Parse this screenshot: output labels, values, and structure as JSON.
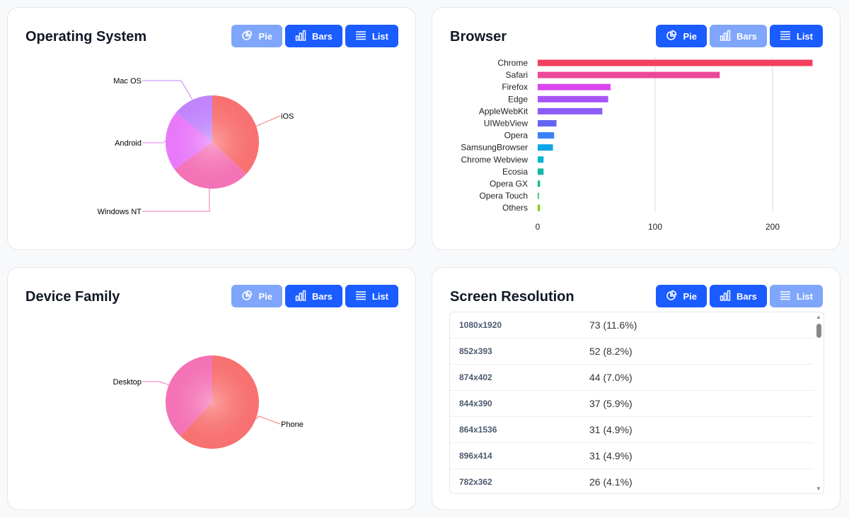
{
  "buttons": {
    "pie": "Pie",
    "bars": "Bars",
    "list": "List"
  },
  "cards": [
    {
      "title": "Operating System",
      "active": "pie"
    },
    {
      "title": "Browser",
      "active": "bars"
    },
    {
      "title": "Device Family",
      "active": "pie"
    },
    {
      "title": "Screen Resolution",
      "active": "list"
    }
  ],
  "chart_data": [
    {
      "type": "pie",
      "slices": [
        {
          "label": "iOS",
          "value": 37,
          "color": "#f87171"
        },
        {
          "label": "Windows NT",
          "value": 28,
          "color": "#f472b6"
        },
        {
          "label": "Android",
          "value": 21,
          "color": "#e879f9"
        },
        {
          "label": "Mac OS",
          "value": 14,
          "color": "#c084fc"
        }
      ]
    },
    {
      "type": "bar",
      "orientation": "horizontal",
      "categories": [
        "Chrome",
        "Safari",
        "Firefox",
        "Edge",
        "AppleWebKit",
        "UIWebView",
        "Opera",
        "SamsungBrowser",
        "Chrome Webview",
        "Ecosia",
        "Opera GX",
        "Opera Touch",
        "Others"
      ],
      "values": [
        234,
        155,
        62,
        60,
        55,
        16,
        14,
        13,
        5,
        5,
        2,
        1,
        2
      ],
      "colors": [
        "#f43f5e",
        "#ec4899",
        "#d946ef",
        "#a855f7",
        "#8b5cf6",
        "#6366f1",
        "#3b82f6",
        "#0ea5e9",
        "#06b6d4",
        "#14b8a6",
        "#10b981",
        "#22c55e",
        "#84cc16"
      ],
      "xticks": [
        0,
        100,
        200
      ],
      "xlim": [
        0,
        240
      ],
      "grid": true
    },
    {
      "type": "pie",
      "slices": [
        {
          "label": "Phone",
          "value": 62,
          "color": "#f87171"
        },
        {
          "label": "Desktop",
          "value": 38,
          "color": "#f472b6"
        }
      ]
    }
  ],
  "resolution_list": [
    {
      "key": "1080x1920",
      "value": "73 (11.6%)"
    },
    {
      "key": "852x393",
      "value": "52 (8.2%)"
    },
    {
      "key": "874x402",
      "value": "44 (7.0%)"
    },
    {
      "key": "844x390",
      "value": "37 (5.9%)"
    },
    {
      "key": "864x1536",
      "value": "31 (4.9%)"
    },
    {
      "key": "896x414",
      "value": "31 (4.9%)"
    },
    {
      "key": "782x362",
      "value": "26 (4.1%)"
    }
  ]
}
